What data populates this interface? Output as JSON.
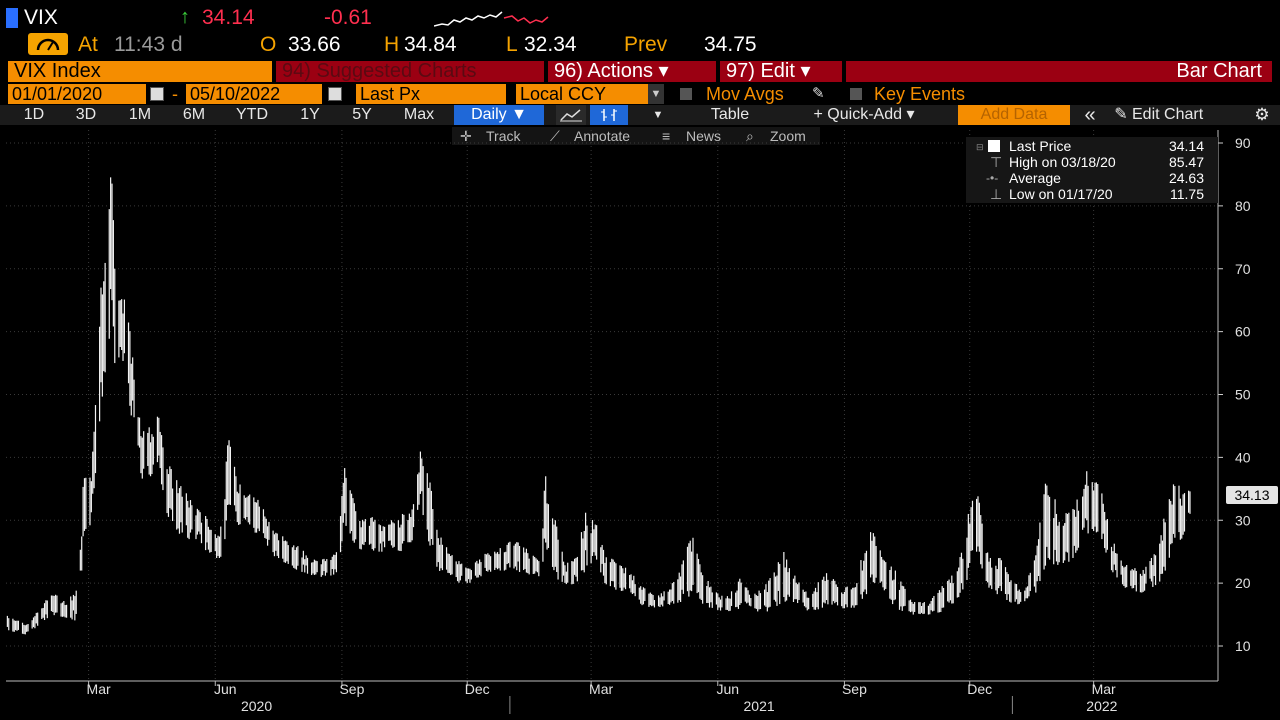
{
  "quote": {
    "ticker": "VIX",
    "arrow": "↑",
    "last": "34.14",
    "change": "-0.61",
    "at_label": "At",
    "time": "11:43 d",
    "open_label": "O",
    "open": "33.66",
    "high_label": "H",
    "high": "34.84",
    "low_label": "L",
    "low": "32.34",
    "prev_label": "Prev",
    "prev": "34.75"
  },
  "toolbar": {
    "security": "VIX Index",
    "suggested": "94) Suggested Charts",
    "actions": "96) Actions ▾",
    "edit": "97) Edit ▾",
    "chart_type": "Bar Chart"
  },
  "range": {
    "start": "01/01/2020",
    "dash": "-",
    "end": "05/10/2022",
    "field": "Last Px",
    "currency": "Local CCY",
    "mov_avgs": "Mov Avgs",
    "key_events": "Key Events"
  },
  "periods": [
    "1D",
    "3D",
    "1M",
    "6M",
    "YTD",
    "1Y",
    "5Y",
    "Max"
  ],
  "controls": {
    "frequency": "Daily ▼",
    "table": "Table",
    "quick_add": "+ Quick-Add ▾",
    "add_data": "Add Data",
    "collapse": "«",
    "edit_chart": "Edit Chart"
  },
  "subtools": [
    "Track",
    "Annotate",
    "News",
    "Zoom"
  ],
  "legend": {
    "rows": [
      {
        "label": "Last Price",
        "value": "34.14"
      },
      {
        "label": "High on 03/18/20",
        "value": "85.47"
      },
      {
        "label": "Average",
        "value": "24.63"
      },
      {
        "label": "Low on 01/17/20",
        "value": "11.75"
      }
    ]
  },
  "last_tag": "34.13",
  "colors": {
    "accent": "#f58d00",
    "down": "#ff2f4f",
    "up": "#3cd13c",
    "menu": "#9b0012",
    "selected": "#1f68d8"
  },
  "chart_data": {
    "type": "bar",
    "ylim": [
      8,
      92
    ],
    "yticks": [
      10,
      20,
      30,
      40,
      50,
      60,
      70,
      80,
      90
    ],
    "month_ticks": [
      "Mar",
      "Jun",
      "Sep",
      "Dec",
      "Mar",
      "Jun",
      "Sep",
      "Dec",
      "Mar"
    ],
    "year_labels": [
      "2020",
      "2021",
      "2022"
    ],
    "series": [
      {
        "x": [
          "2020-01-02",
          "2020-01-17",
          "2020-02-03",
          "2020-02-14",
          "2020-02-21",
          "2020-02-24",
          "2020-02-27",
          "2020-03-03",
          "2020-03-09",
          "2020-03-12",
          "2020-03-16",
          "2020-03-18",
          "2020-03-20",
          "2020-03-24",
          "2020-03-27",
          "2020-03-31",
          "2020-04-06",
          "2020-04-09",
          "2020-04-15",
          "2020-04-21",
          "2020-04-28",
          "2020-05-05",
          "2020-05-12",
          "2020-05-18",
          "2020-05-26",
          "2020-06-01",
          "2020-06-05",
          "2020-06-11",
          "2020-06-16",
          "2020-06-24",
          "2020-06-30",
          "2020-07-08",
          "2020-07-15",
          "2020-07-24",
          "2020-07-31",
          "2020-08-07",
          "2020-08-14",
          "2020-08-21",
          "2020-08-28",
          "2020-09-03",
          "2020-09-08",
          "2020-09-15",
          "2020-09-23",
          "2020-09-30",
          "2020-10-07",
          "2020-10-15",
          "2020-10-23",
          "2020-10-28",
          "2020-11-04",
          "2020-11-10",
          "2020-11-18",
          "2020-11-25",
          "2020-12-04",
          "2020-12-11",
          "2020-12-21",
          "2021-01-04",
          "2021-01-13",
          "2021-01-22",
          "2021-01-27",
          "2021-02-03",
          "2021-02-10",
          "2021-02-18",
          "2021-02-25",
          "2021-03-04",
          "2021-03-11",
          "2021-03-19",
          "2021-03-29",
          "2021-04-07",
          "2021-04-16",
          "2021-04-26",
          "2021-05-05",
          "2021-05-12",
          "2021-05-19",
          "2021-05-28",
          "2021-06-08",
          "2021-06-18",
          "2021-06-25",
          "2021-07-07",
          "2021-07-19",
          "2021-07-28",
          "2021-08-06",
          "2021-08-19",
          "2021-08-30",
          "2021-09-08",
          "2021-09-20",
          "2021-09-29",
          "2021-10-08",
          "2021-10-20",
          "2021-11-01",
          "2021-11-12",
          "2021-11-22",
          "2021-11-30",
          "2021-12-06",
          "2021-12-15",
          "2021-12-23",
          "2022-01-03",
          "2022-01-10",
          "2022-01-18",
          "2022-01-27",
          "2022-02-04",
          "2022-02-14",
          "2022-02-24",
          "2022-03-07",
          "2022-03-14",
          "2022-03-25",
          "2022-04-05",
          "2022-04-14",
          "2022-04-22",
          "2022-04-29",
          "2022-05-05",
          "2022-05-10"
        ],
        "high": [
          15.0,
          13.5,
          18.5,
          17.2,
          18.8,
          25.9,
          40.0,
          39.0,
          62.1,
          76.8,
          83.6,
          85.47,
          70.0,
          65.0,
          65.5,
          60.1,
          47.5,
          44.0,
          45.0,
          47.2,
          39.0,
          36.0,
          34.0,
          32.0,
          30.5,
          28.0,
          29.0,
          44.5,
          37.0,
          35.0,
          34.0,
          31.0,
          28.0,
          27.0,
          26.0,
          24.5,
          23.5,
          24.0,
          25.0,
          38.3,
          37.0,
          30.0,
          30.5,
          29.0,
          30.0,
          31.0,
          33.0,
          41.2,
          36.0,
          28.0,
          25.0,
          23.5,
          22.5,
          24.5,
          25.0,
          27.0,
          25.5,
          23.5,
          37.5,
          30.0,
          23.0,
          24.0,
          31.2,
          30.0,
          24.5,
          23.5,
          22.0,
          19.5,
          18.0,
          19.0,
          22.0,
          28.9,
          23.0,
          19.0,
          18.0,
          21.0,
          18.0,
          20.0,
          25.0,
          21.0,
          18.0,
          22.0,
          19.0,
          20.0,
          28.8,
          25.0,
          22.0,
          17.0,
          17.0,
          20.0,
          22.0,
          31.0,
          35.3,
          24.0,
          24.0,
          20.0,
          19.0,
          25.0,
          38.9,
          30.0,
          32.5,
          37.8,
          35.0,
          27.0,
          23.0,
          22.0,
          25.0,
          31.0,
          36.5,
          34.5,
          35.0
        ],
        "low": [
          12.5,
          11.75,
          15.0,
          14.5,
          14.0,
          20.0,
          26.0,
          30.0,
          45.0,
          52.0,
          57.0,
          65.0,
          55.0,
          56.0,
          55.0,
          48.0,
          40.0,
          36.0,
          37.0,
          38.0,
          30.0,
          28.0,
          27.0,
          27.0,
          25.0,
          24.0,
          24.0,
          30.0,
          29.0,
          30.0,
          28.0,
          26.0,
          24.0,
          23.0,
          22.0,
          21.5,
          21.0,
          21.0,
          21.5,
          28.0,
          27.0,
          25.0,
          25.0,
          25.0,
          25.5,
          25.0,
          27.0,
          33.0,
          25.0,
          22.0,
          21.5,
          20.0,
          20.0,
          21.0,
          22.0,
          22.0,
          21.5,
          21.0,
          25.0,
          21.0,
          19.5,
          20.0,
          22.0,
          24.0,
          20.0,
          18.5,
          18.5,
          16.5,
          16.0,
          16.5,
          17.0,
          18.0,
          17.0,
          15.8,
          15.5,
          16.0,
          15.5,
          15.5,
          17.0,
          17.0,
          15.5,
          16.0,
          16.0,
          16.0,
          19.0,
          19.0,
          16.0,
          15.0,
          15.0,
          15.5,
          17.0,
          21.0,
          25.0,
          19.0,
          18.0,
          16.5,
          17.0,
          18.5,
          24.0,
          22.0,
          24.0,
          28.0,
          27.0,
          22.0,
          19.0,
          18.5,
          19.5,
          21.0,
          25.0,
          27.5,
          31.0
        ]
      }
    ]
  }
}
